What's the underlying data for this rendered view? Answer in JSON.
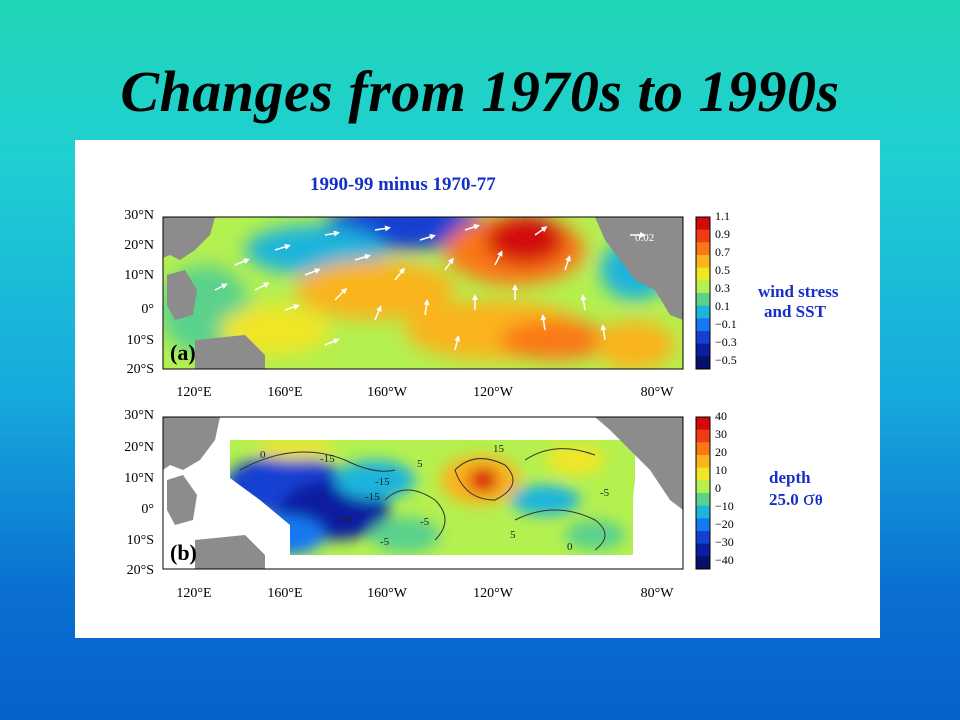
{
  "slide": {
    "title": "Changes from 1970s to 1990s"
  },
  "figure": {
    "panel_a": {
      "title": "1990-99 minus 1970-77",
      "label": "(a)",
      "vector_ref": "0.02",
      "side_label_line1": "wind stress",
      "side_label_line2": "and SST",
      "colorbar_labels": [
        "1.1",
        "0.9",
        "0.7",
        "0.5",
        "0.3",
        "0.1",
        "−0.1",
        "−0.3",
        "−0.5"
      ],
      "colorbar_colors": [
        "#d20a0a",
        "#f03c14",
        "#fa7814",
        "#fab41e",
        "#f0e628",
        "#b4f050",
        "#5ad28c",
        "#1eb4dc",
        "#1478f0",
        "#1440d2",
        "#0a1ea0",
        "#06106a"
      ]
    },
    "panel_b": {
      "label": "(b)",
      "side_label_line1": "depth",
      "side_label_line2": "25.0",
      "sigma_symbol": "σ",
      "sigma_sub": "θ",
      "colorbar_labels": [
        "40",
        "30",
        "20",
        "10",
        "0",
        "−10",
        "−20",
        "−30",
        "−40"
      ],
      "colorbar_colors": [
        "#d20a0a",
        "#f03c14",
        "#fa7814",
        "#fab41e",
        "#f0e628",
        "#b4f050",
        "#5ad28c",
        "#1eb4dc",
        "#1478f0",
        "#1440d2",
        "#0a1ea0",
        "#06106a"
      ],
      "contour_labels": [
        "0",
        "-15",
        "-15",
        "-20",
        "5",
        "15",
        "-5",
        "-5",
        "5",
        "0",
        "-5",
        "-15"
      ]
    },
    "lat_labels": [
      "30°N",
      "20°N",
      "10°N",
      "0°",
      "10°S",
      "20°S"
    ],
    "lon_labels": [
      "120°E",
      "160°E",
      "160°W",
      "120°W",
      "80°W"
    ]
  }
}
